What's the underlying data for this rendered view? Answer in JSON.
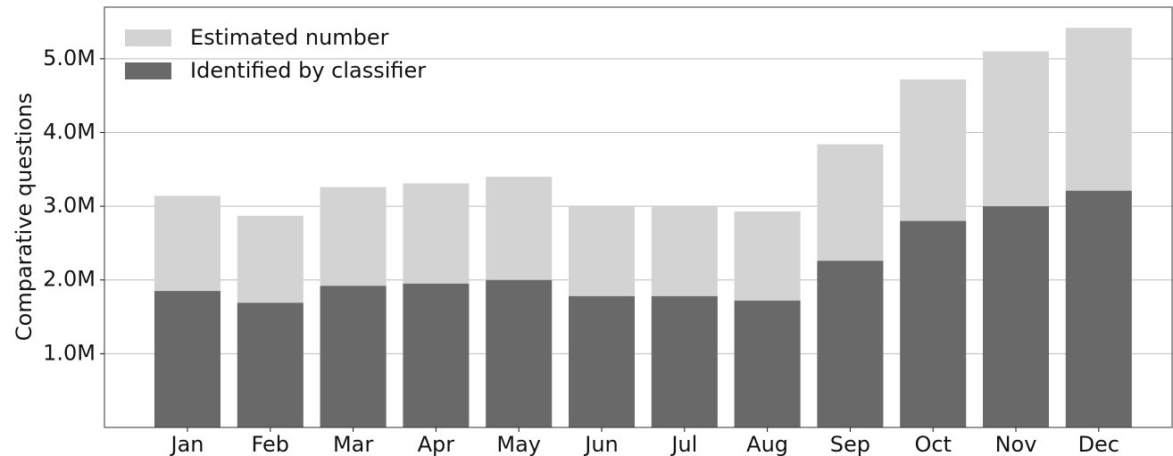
{
  "chart_data": {
    "type": "bar",
    "y_label": "Comparative questions",
    "categories": [
      "Jan",
      "Feb",
      "Mar",
      "Apr",
      "May",
      "Jun",
      "Jul",
      "Aug",
      "Sep",
      "Oct",
      "Nov",
      "Dec"
    ],
    "series": [
      {
        "name": "Estimated number",
        "color": "#d3d3d3",
        "values": [
          3.14,
          2.87,
          3.26,
          3.31,
          3.4,
          3.01,
          3.01,
          2.93,
          3.84,
          4.72,
          5.1,
          5.42
        ]
      },
      {
        "name": "Identified by classifier",
        "color": "#696969",
        "values": [
          1.85,
          1.69,
          1.92,
          1.95,
          2.0,
          1.78,
          1.78,
          1.72,
          2.26,
          2.8,
          3.0,
          3.21
        ]
      }
    ],
    "overlap": true,
    "ylim": [
      0,
      5.7
    ],
    "yticks": [
      {
        "value": 1,
        "label": "1.0M"
      },
      {
        "value": 2,
        "label": "2.0M"
      },
      {
        "value": 3,
        "label": "3.0M"
      },
      {
        "value": 4,
        "label": "4.0M"
      },
      {
        "value": 5,
        "label": "5.0M"
      }
    ],
    "grid": true,
    "legend": "upper left"
  }
}
